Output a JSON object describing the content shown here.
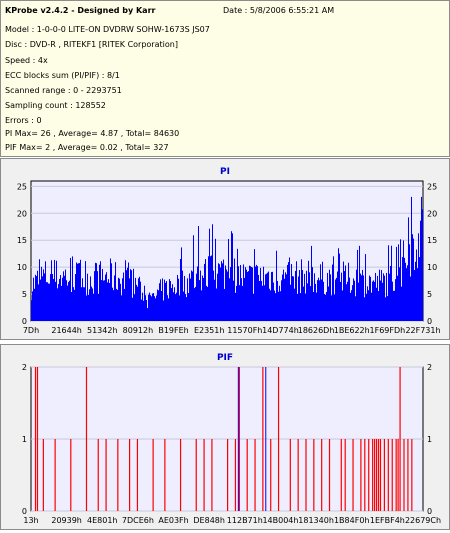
{
  "header": {
    "title": "KProbe v2.4.2 - Designed by Karr",
    "date": "Date : 5/8/2006 6:55:21 AM",
    "lines": [
      "Model : 1-0-0-0 LITE-ON DVDRW SOHW-1673S JS07",
      "Disc : DVD-R , RITEKF1 [RITEK Corporation]",
      "Speed : 4x",
      "ECC blocks sum (PI/PIF) : 8/1",
      "Scanned range : 0 - 2293751",
      "Sampling count : 128552",
      "Errors : 0",
      "PI Max= 26 , Average= 4.87 , Total= 84630",
      "PIF Max= 2 , Average= 0.02 , Total= 327"
    ]
  },
  "chart_data": [
    {
      "type": "area",
      "title": "PI",
      "ylim": [
        0,
        26
      ],
      "yticks": [
        0,
        5,
        10,
        15,
        20,
        25
      ],
      "xtick_labels": [
        "7Dh",
        "21644h",
        "51342h",
        "80912h",
        "B19FEh",
        "E2351h",
        "11570Fh",
        "14D774h",
        "18626Dh",
        "1BE622h",
        "1F69FDh",
        "22F731h"
      ],
      "series_color": "#0000ff",
      "profile": {
        "x_fraction": [
          0,
          0.03,
          0.08,
          0.15,
          0.2,
          0.27,
          0.3,
          0.33,
          0.36,
          0.4,
          0.45,
          0.5,
          0.55,
          0.6,
          0.65,
          0.7,
          0.75,
          0.8,
          0.85,
          0.88,
          0.91,
          0.94,
          0.96,
          0.98,
          1.0
        ],
        "typical": [
          7,
          9,
          9,
          8.5,
          9,
          7.5,
          3.5,
          6,
          7,
          8,
          9.5,
          10,
          8.5,
          9,
          8.5,
          9,
          8.5,
          8.5,
          8,
          7.5,
          8,
          10,
          13,
          16,
          19
        ],
        "peaks": [
          10,
          13,
          12,
          12,
          14,
          10,
          6,
          11,
          13,
          16,
          22,
          18,
          15,
          14,
          14,
          16,
          14,
          15,
          14,
          13,
          14,
          16,
          22,
          26,
          24
        ]
      }
    },
    {
      "type": "bar",
      "title": "PIF",
      "ylim": [
        0,
        2
      ],
      "yticks": [
        0,
        1,
        2
      ],
      "xtick_labels": [
        "13h",
        "20939h",
        "4E801h",
        "7DCE6h",
        "AE03Fh",
        "DE848h",
        "112B71h",
        "14B004h",
        "181340h",
        "1B84F0h",
        "1EFBF4h",
        "22679Ch"
      ],
      "series_color": "#ff0000",
      "series_color_alt": "#0000ff",
      "events": {
        "x_fraction": [
          0.01,
          0.015,
          0.03,
          0.06,
          0.1,
          0.14,
          0.17,
          0.19,
          0.22,
          0.25,
          0.27,
          0.31,
          0.34,
          0.38,
          0.42,
          0.44,
          0.46,
          0.5,
          0.52,
          0.53,
          0.55,
          0.57,
          0.59,
          0.61,
          0.63,
          0.66,
          0.68,
          0.7,
          0.72,
          0.74,
          0.76,
          0.79,
          0.8,
          0.82,
          0.84,
          0.85,
          0.86,
          0.87,
          0.875,
          0.88,
          0.885,
          0.89,
          0.9,
          0.91,
          0.92,
          0.93,
          0.935,
          0.94,
          0.95,
          0.96,
          0.97
        ],
        "values": [
          2,
          2,
          1,
          1,
          1,
          2,
          1,
          1,
          1,
          1,
          1,
          1,
          1,
          1,
          1,
          1,
          1,
          1,
          1,
          2,
          1,
          1,
          2,
          1,
          2,
          1,
          1,
          1,
          1,
          1,
          1,
          1,
          1,
          1,
          1,
          1,
          1,
          1,
          1,
          1,
          1,
          1,
          1,
          1,
          1,
          1,
          1,
          2,
          1,
          1,
          1
        ],
        "blue_x_fraction": [
          0.52,
          0.59
        ]
      }
    }
  ]
}
